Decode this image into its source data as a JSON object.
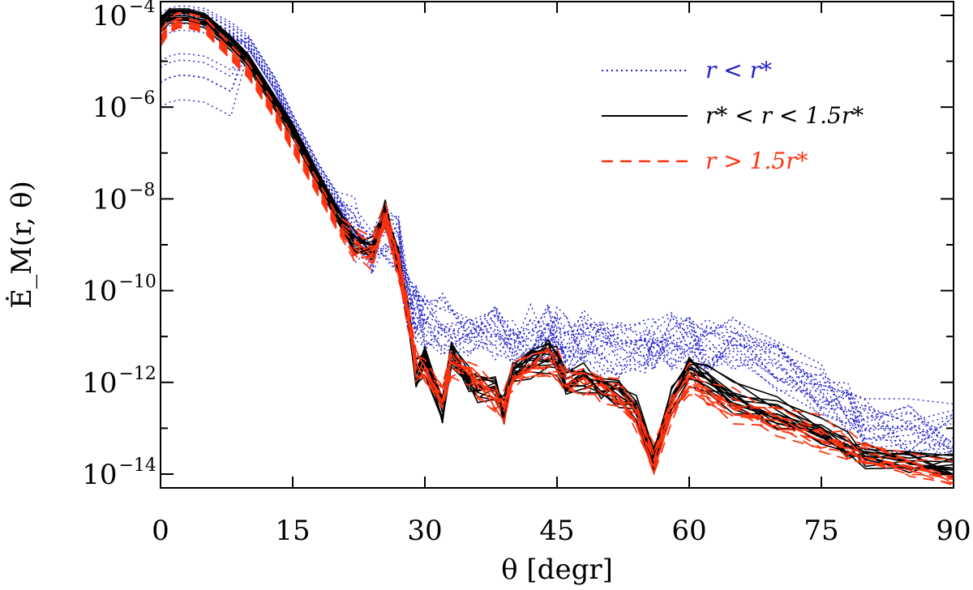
{
  "chart_data": {
    "type": "line",
    "title": "",
    "xlabel": "θ [degr]",
    "ylabel": "Ė_M(r, θ)",
    "xlim": [
      0,
      90
    ],
    "ylim_log10": [
      -14.3,
      -3.7
    ],
    "x_ticks": [
      0,
      15,
      30,
      45,
      60,
      75,
      90
    ],
    "x_tick_labels": [
      "0",
      "15",
      "30",
      "45",
      "60",
      "75",
      "90"
    ],
    "y_ticks_log10": [
      -4,
      -6,
      -8,
      -10,
      -12,
      -14
    ],
    "y_tick_base": "10",
    "y_tick_exponents": [
      "−4",
      "−6",
      "−8",
      "−10",
      "−12",
      "−14"
    ],
    "legend_position": "top-right",
    "legend": [
      {
        "label": "r < r*",
        "color": "#2222cc",
        "style": "dotted"
      },
      {
        "label": "r* < r < 1.5r*",
        "color": "#000000",
        "style": "solid"
      },
      {
        "label": "r > 1.5r*",
        "color": "#ff3311",
        "style": "dashed"
      }
    ],
    "series": [
      {
        "name": "r < r*",
        "color": "#2222cc",
        "style": "dotted",
        "count": 20,
        "x": [
          0,
          1,
          2,
          3,
          5,
          8,
          10,
          13,
          15,
          18,
          20,
          22,
          24,
          25.5,
          27,
          28,
          29,
          30,
          32,
          35,
          38,
          40,
          42,
          44,
          45,
          46,
          48,
          50,
          52,
          55,
          56,
          58,
          60,
          62,
          65,
          70,
          75,
          78,
          80,
          85,
          90
        ],
        "log10_y": [
          -4.1,
          -4.0,
          -3.95,
          -3.95,
          -4.0,
          -4.3,
          -4.6,
          -5.5,
          -6.3,
          -7.4,
          -8.0,
          -8.7,
          -9.2,
          -8.6,
          -8.9,
          -10.1,
          -10.5,
          -10.6,
          -10.7,
          -10.8,
          -10.9,
          -11.0,
          -10.95,
          -10.9,
          -11.0,
          -11.2,
          -11.1,
          -11.15,
          -11.2,
          -11.25,
          -11.2,
          -11.1,
          -11.1,
          -11.2,
          -11.3,
          -11.6,
          -12.2,
          -12.6,
          -12.9,
          -13.0,
          -13.1
        ]
      },
      {
        "name": "r* < r < 1.5r*",
        "color": "#000000",
        "style": "solid",
        "count": 15,
        "x": [
          0,
          1,
          2,
          3,
          5,
          8,
          10,
          13,
          15,
          18,
          20,
          22,
          24,
          25.5,
          27,
          28,
          29,
          30,
          32,
          33,
          35,
          36,
          38,
          39,
          40,
          42,
          44,
          45,
          46,
          48,
          50,
          52,
          54,
          56,
          58,
          60,
          62,
          65,
          70,
          75,
          78,
          80,
          85,
          90
        ],
        "log10_y": [
          -4.2,
          -4.0,
          -4.0,
          -4.0,
          -4.1,
          -4.6,
          -5.0,
          -5.9,
          -6.5,
          -7.6,
          -8.3,
          -8.9,
          -9.1,
          -8.3,
          -9.3,
          -10.3,
          -11.8,
          -11.5,
          -12.6,
          -11.4,
          -11.9,
          -12.1,
          -12.2,
          -12.6,
          -11.8,
          -11.6,
          -11.4,
          -11.5,
          -12.0,
          -11.9,
          -12.1,
          -12.2,
          -12.6,
          -13.7,
          -12.4,
          -11.7,
          -11.9,
          -12.3,
          -12.7,
          -13.1,
          -13.4,
          -13.6,
          -13.7,
          -13.8
        ]
      },
      {
        "name": "r > 1.5r*",
        "color": "#ff3311",
        "style": "dashed",
        "count": 12,
        "x": [
          0,
          1,
          2,
          3,
          5,
          8,
          10,
          13,
          15,
          18,
          20,
          22,
          24,
          25.5,
          27,
          28,
          29,
          30,
          32,
          33,
          35,
          36,
          38,
          39,
          40,
          42,
          44,
          45,
          46,
          48,
          50,
          52,
          54,
          56,
          58,
          60,
          62,
          65,
          70,
          75,
          78,
          80,
          85,
          90
        ],
        "log10_y": [
          -4.5,
          -4.2,
          -4.1,
          -4.1,
          -4.2,
          -4.8,
          -5.2,
          -6.1,
          -6.8,
          -7.8,
          -8.5,
          -9.0,
          -9.2,
          -8.4,
          -9.4,
          -10.4,
          -11.6,
          -11.7,
          -12.3,
          -11.6,
          -11.8,
          -12.0,
          -12.3,
          -12.5,
          -11.9,
          -11.7,
          -11.5,
          -11.6,
          -11.9,
          -12.0,
          -12.1,
          -12.3,
          -12.7,
          -13.6,
          -12.5,
          -11.9,
          -12.2,
          -12.5,
          -12.8,
          -13.1,
          -13.4,
          -13.6,
          -13.8,
          -14.0
        ]
      }
    ]
  }
}
